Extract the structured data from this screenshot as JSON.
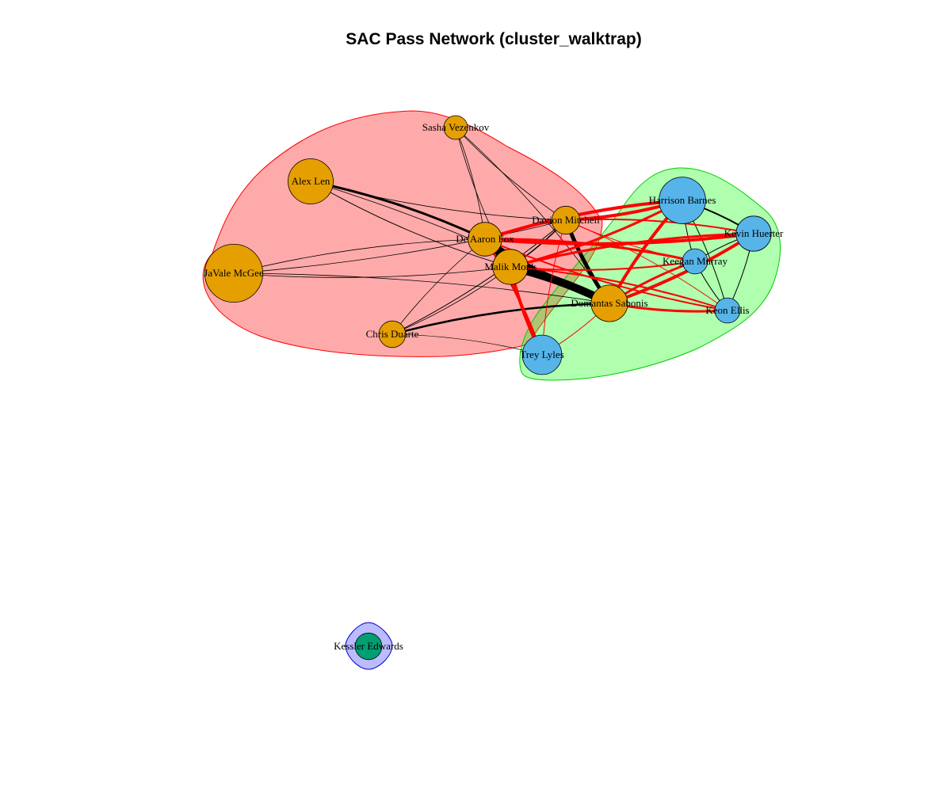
{
  "title": "SAC Pass Network (cluster_walktrap)",
  "clusters": [
    {
      "id": 1,
      "fill": "#FF000055",
      "stroke": "#FF0000",
      "members": [
        "Sasha Vezenkov",
        "Alex Len",
        "JaVale McGee",
        "De'Aaron Fox",
        "Malik Monk",
        "Davion Mitchell",
        "Chris Duarte",
        "Domantas Sabonis"
      ]
    },
    {
      "id": 2,
      "fill": "#00FF0050",
      "stroke": "#00CC00",
      "members": [
        "Harrison Barnes",
        "Kevin Huerter",
        "Keegan Murray",
        "Keon Ellis",
        "Trey Lyles"
      ]
    },
    {
      "id": 3,
      "fill": "#0000FF44",
      "stroke": "#0000CC",
      "members": [
        "Kessler Edwards"
      ]
    }
  ],
  "nodes": [
    {
      "id": "sasha",
      "label": "Sasha Vezenkov",
      "cluster": 1,
      "size": 1,
      "color": "#E69F00"
    },
    {
      "id": "len",
      "label": "Alex Len",
      "cluster": 1,
      "size": 2.5,
      "color": "#E69F00"
    },
    {
      "id": "mcgee",
      "label": "JaVale McGee",
      "cluster": 1,
      "size": 3.4,
      "color": "#E69F00"
    },
    {
      "id": "fox",
      "label": "De'Aaron Fox",
      "cluster": 1,
      "size": 1.7,
      "color": "#E69F00"
    },
    {
      "id": "monk",
      "label": "Malik Monk",
      "cluster": 1,
      "size": 1.8,
      "color": "#E69F00"
    },
    {
      "id": "mitchell",
      "label": "Davion Mitchell",
      "cluster": 1,
      "size": 1.3,
      "color": "#E69F00"
    },
    {
      "id": "duarte",
      "label": "Chris Duarte",
      "cluster": 1,
      "size": 1.2,
      "color": "#E69F00"
    },
    {
      "id": "sabonis",
      "label": "Domantas Sabonis",
      "cluster": 1,
      "size": 1.9,
      "color": "#E69F00"
    },
    {
      "id": "barnes",
      "label": "Harrison Barnes",
      "cluster": 2,
      "size": 2.6,
      "color": "#56B4E9"
    },
    {
      "id": "huerter",
      "label": "Kevin Huerter",
      "cluster": 2,
      "size": 1.8,
      "color": "#56B4E9"
    },
    {
      "id": "murray",
      "label": "Keegan Murray",
      "cluster": 2,
      "size": 1.1,
      "color": "#56B4E9"
    },
    {
      "id": "ellis",
      "label": "Keon Ellis",
      "cluster": 2,
      "size": 1.1,
      "color": "#56B4E9"
    },
    {
      "id": "lyles",
      "label": "Trey Lyles",
      "cluster": 2,
      "size": 2.1,
      "color": "#56B4E9"
    },
    {
      "id": "edwards",
      "label": "Kessler Edwards",
      "cluster": 3,
      "size": 1.2,
      "color": "#009E73"
    }
  ],
  "edges": [
    {
      "a": "fox",
      "b": "monk",
      "w": 14,
      "color": "#000000"
    },
    {
      "a": "fox",
      "b": "sabonis",
      "w": 6,
      "color": "#000000"
    },
    {
      "a": "monk",
      "b": "sabonis",
      "w": 10,
      "color": "#000000"
    },
    {
      "a": "mitchell",
      "b": "sabonis",
      "w": 5,
      "color": "#000000"
    },
    {
      "a": "fox",
      "b": "mitchell",
      "w": 2,
      "color": "#000000"
    },
    {
      "a": "monk",
      "b": "mitchell",
      "w": 1.5,
      "color": "#000000"
    },
    {
      "a": "len",
      "b": "fox",
      "w": 3,
      "color": "#000000"
    },
    {
      "a": "len",
      "b": "monk",
      "w": 1,
      "color": "#000000"
    },
    {
      "a": "len",
      "b": "sabonis",
      "w": 0.8,
      "color": "#000000"
    },
    {
      "a": "len",
      "b": "mitchell",
      "w": 0.8,
      "color": "#000000"
    },
    {
      "a": "mcgee",
      "b": "fox",
      "w": 0.8,
      "color": "#000000"
    },
    {
      "a": "mcgee",
      "b": "monk",
      "w": 0.8,
      "color": "#000000"
    },
    {
      "a": "mcgee",
      "b": "sabonis",
      "w": 0.8,
      "color": "#000000"
    },
    {
      "a": "mcgee",
      "b": "mitchell",
      "w": 0.8,
      "color": "#000000"
    },
    {
      "a": "sasha",
      "b": "fox",
      "w": 0.8,
      "color": "#000000"
    },
    {
      "a": "sasha",
      "b": "monk",
      "w": 0.8,
      "color": "#000000"
    },
    {
      "a": "sasha",
      "b": "sabonis",
      "w": 0.8,
      "color": "#000000"
    },
    {
      "a": "sasha",
      "b": "mitchell",
      "w": 0.8,
      "color": "#000000"
    },
    {
      "a": "duarte",
      "b": "fox",
      "w": 0.8,
      "color": "#000000"
    },
    {
      "a": "duarte",
      "b": "monk",
      "w": 0.8,
      "color": "#000000"
    },
    {
      "a": "duarte",
      "b": "sabonis",
      "w": 2.5,
      "color": "#000000"
    },
    {
      "a": "duarte",
      "b": "mitchell",
      "w": 1,
      "color": "#000000"
    },
    {
      "a": "barnes",
      "b": "huerter",
      "w": 2,
      "color": "#000000"
    },
    {
      "a": "barnes",
      "b": "murray",
      "w": 1,
      "color": "#000000"
    },
    {
      "a": "barnes",
      "b": "ellis",
      "w": 1,
      "color": "#000000"
    },
    {
      "a": "huerter",
      "b": "murray",
      "w": 1,
      "color": "#000000"
    },
    {
      "a": "huerter",
      "b": "ellis",
      "w": 1,
      "color": "#000000"
    },
    {
      "a": "murray",
      "b": "ellis",
      "w": 1,
      "color": "#000000"
    },
    {
      "a": "fox",
      "b": "barnes",
      "w": 4,
      "color": "#FF0000"
    },
    {
      "a": "fox",
      "b": "huerter",
      "w": 4,
      "color": "#FF0000"
    },
    {
      "a": "fox",
      "b": "murray",
      "w": 3,
      "color": "#FF0000"
    },
    {
      "a": "fox",
      "b": "ellis",
      "w": 2,
      "color": "#FF0000"
    },
    {
      "a": "fox",
      "b": "lyles",
      "w": 3,
      "color": "#FF0000"
    },
    {
      "a": "monk",
      "b": "barnes",
      "w": 3,
      "color": "#FF0000"
    },
    {
      "a": "monk",
      "b": "huerter",
      "w": 3,
      "color": "#FF0000"
    },
    {
      "a": "monk",
      "b": "murray",
      "w": 2,
      "color": "#FF0000"
    },
    {
      "a": "monk",
      "b": "ellis",
      "w": 2,
      "color": "#FF0000"
    },
    {
      "a": "monk",
      "b": "lyles",
      "w": 4,
      "color": "#FF0000"
    },
    {
      "a": "sabonis",
      "b": "barnes",
      "w": 4,
      "color": "#FF0000"
    },
    {
      "a": "sabonis",
      "b": "huerter",
      "w": 4,
      "color": "#FF0000"
    },
    {
      "a": "sabonis",
      "b": "murray",
      "w": 3,
      "color": "#FF0000"
    },
    {
      "a": "sabonis",
      "b": "ellis",
      "w": 3,
      "color": "#FF0000"
    },
    {
      "a": "sabonis",
      "b": "lyles",
      "w": 1,
      "color": "#FF0000"
    },
    {
      "a": "mitchell",
      "b": "barnes",
      "w": 4,
      "color": "#FF0000"
    },
    {
      "a": "mitchell",
      "b": "huerter",
      "w": 2,
      "color": "#FF0000"
    },
    {
      "a": "mitchell",
      "b": "murray",
      "w": 1,
      "color": "#FF0000"
    },
    {
      "a": "mitchell",
      "b": "ellis",
      "w": 1,
      "color": "#FF0000"
    },
    {
      "a": "mitchell",
      "b": "lyles",
      "w": 1,
      "color": "#FF0000"
    },
    {
      "a": "duarte",
      "b": "lyles",
      "w": 0.7,
      "color": "#000000"
    }
  ]
}
